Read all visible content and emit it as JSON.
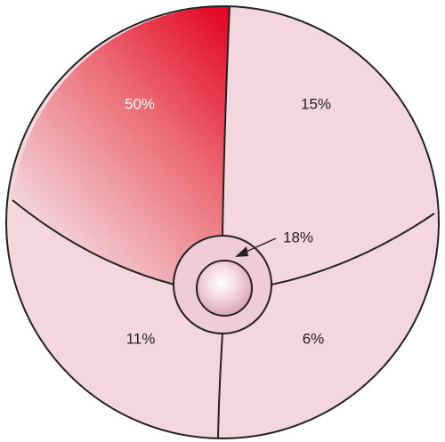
{
  "regions": [
    {
      "label": "50%"
    },
    {
      "label": "15%"
    },
    {
      "label": "18%"
    },
    {
      "label": "11%"
    },
    {
      "label": "6%"
    }
  ]
}
